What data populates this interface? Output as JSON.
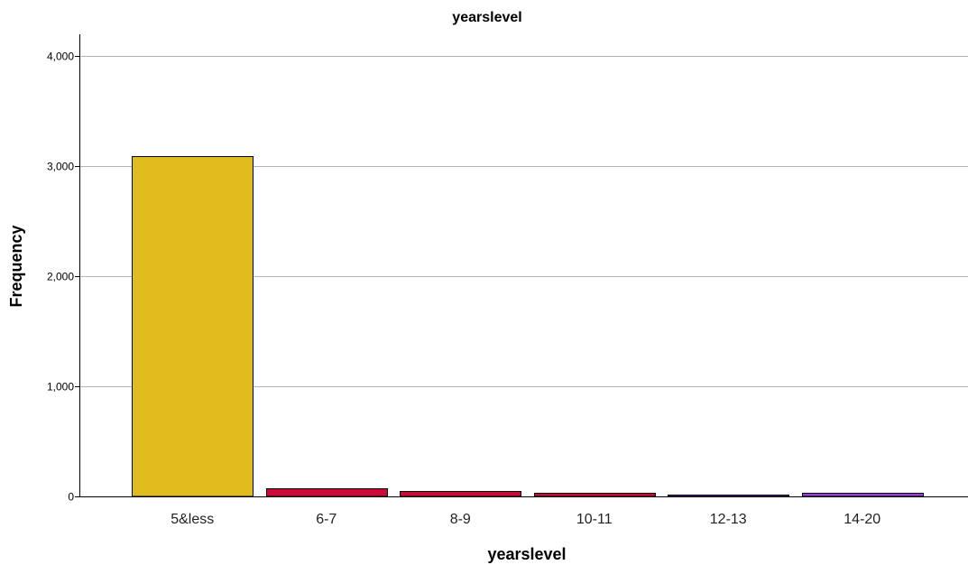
{
  "chart_data": {
    "type": "bar",
    "title": "yearslevel",
    "xlabel": "yearslevel",
    "ylabel": "Frequency",
    "categories": [
      "5&less",
      "6-7",
      "8-9",
      "10-11",
      "12-13",
      "14-20"
    ],
    "values": [
      3095,
      72,
      48,
      30,
      18,
      32
    ],
    "bar_colors": [
      "#e0bc1f",
      "#cc0a38",
      "#cc0a38",
      "#cc0a38",
      "#9b3fd6",
      "#9b3fd6"
    ],
    "ylim": [
      0,
      4200
    ],
    "yticks": [
      0,
      1000,
      2000,
      3000,
      4000
    ],
    "ytick_labels": [
      "0",
      "1,000",
      "2,000",
      "3,000",
      "4,000"
    ],
    "grid": true,
    "legend": "none"
  }
}
